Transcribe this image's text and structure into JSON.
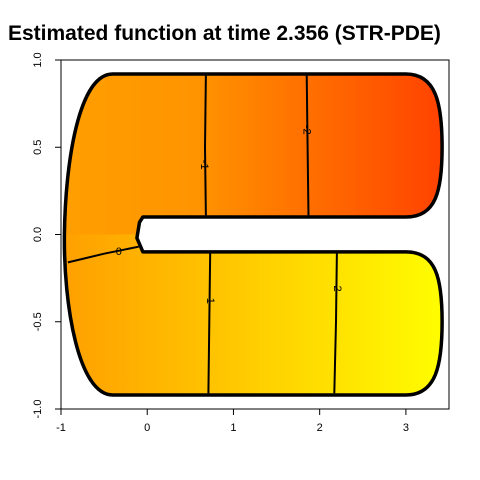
{
  "chart_data": {
    "type": "heatmap",
    "title": "Estimated function at time 2.356 (STR-PDE)",
    "xlabel": "",
    "ylabel": "",
    "xlim": [
      -1,
      3.5
    ],
    "ylim": [
      -1,
      1
    ],
    "x_ticks": [
      "-1",
      "0",
      "1",
      "2",
      "3"
    ],
    "x_tick_values": [
      -1,
      0,
      1,
      2,
      3
    ],
    "y_ticks": [
      "-1.0",
      "-0.5",
      "0.0",
      "0.5",
      "1.0"
    ],
    "y_tick_values": [
      -1,
      -0.5,
      0,
      0.5,
      1
    ],
    "grid": false,
    "colormap": [
      "#ff4000",
      "#ff9f00",
      "#ffff00"
    ],
    "domain_color": "#000000",
    "contours": [
      {
        "label": "-2",
        "points": [
          [
            1.85,
            0.92
          ],
          [
            1.86,
            0.5
          ],
          [
            1.87,
            0.1
          ]
        ],
        "label_at": [
          1.85,
          0.6
        ]
      },
      {
        "label": "-1",
        "points": [
          [
            0.68,
            0.92
          ],
          [
            0.67,
            0.5
          ],
          [
            0.68,
            0.1
          ]
        ],
        "label_at": [
          0.66,
          0.4
        ]
      },
      {
        "label": "0",
        "points": [
          [
            -0.92,
            -0.16
          ],
          [
            -0.75,
            -0.14
          ],
          [
            -0.5,
            -0.11
          ],
          [
            -0.3,
            -0.09
          ],
          [
            -0.1,
            -0.07
          ]
        ],
        "label_at": [
          -0.33,
          -0.1
        ]
      },
      {
        "label": "1",
        "points": [
          [
            0.73,
            -0.1
          ],
          [
            0.72,
            -0.5
          ],
          [
            0.71,
            -0.91
          ]
        ],
        "label_at": [
          0.73,
          -0.38
        ]
      },
      {
        "label": "2",
        "points": [
          [
            2.2,
            -0.1
          ],
          [
            2.19,
            -0.5
          ],
          [
            2.17,
            -0.91
          ]
        ],
        "label_at": [
          2.2,
          -0.31
        ]
      }
    ]
  }
}
